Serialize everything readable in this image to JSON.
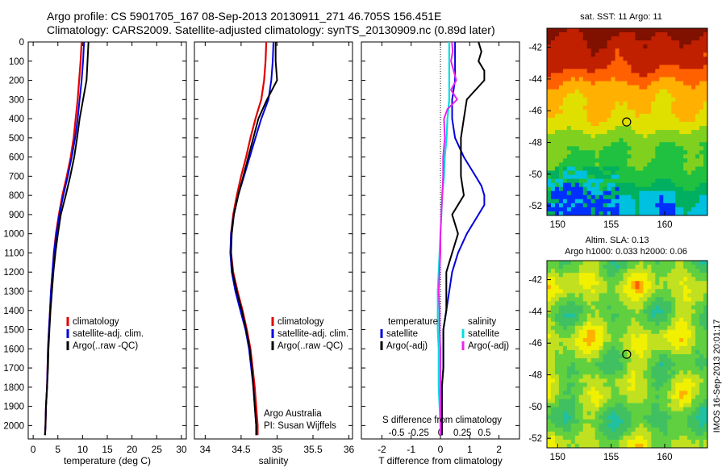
{
  "figure": {
    "title_line1": "Argo profile: CS 5901705_167 08-Sep-2013 20130911_271 46.705S 156.451E",
    "title_line2": "Climatology: CARS2009. Satellite-adjusted climatology: synTS_20130909.nc (0.89d later)",
    "vertical_stamp": "IMOS 16-Sep-2013 20:01:17",
    "credit_line1": "Argo Australia",
    "credit_line2": "PI: Susan Wijffels"
  },
  "colors": {
    "climatology": "#e00000",
    "satellite": "#0000dd",
    "argo": "#000000",
    "salinity_satellite": "#00e0e0",
    "salinity_argo": "#ee22ee"
  },
  "chart_data": [
    {
      "type": "line",
      "id": "temperature",
      "xlabel": "temperature (deg C)",
      "xlim": [
        -1,
        31
      ],
      "xticks": [
        0,
        5,
        10,
        15,
        20,
        25,
        30
      ],
      "ylim": [
        0,
        2070
      ],
      "yticks": [
        0,
        100,
        200,
        300,
        400,
        500,
        600,
        700,
        800,
        900,
        1000,
        1100,
        1200,
        1300,
        1400,
        1500,
        1600,
        1700,
        1800,
        1900,
        2000
      ],
      "y_inverted": true,
      "legend": [
        "climatology",
        "satellite-adj. clim.",
        "Argo(..raw -QC)"
      ],
      "series": [
        {
          "name": "climatology",
          "depth": [
            0,
            100,
            200,
            300,
            400,
            500,
            600,
            700,
            800,
            900,
            1000,
            1100,
            1200,
            1300,
            1400,
            1500,
            1600,
            1700,
            1800,
            1900,
            2000,
            2050
          ],
          "values": [
            9.8,
            9.6,
            9.3,
            9.0,
            8.6,
            8.2,
            7.6,
            6.8,
            5.9,
            5.2,
            4.6,
            4.2,
            3.9,
            3.6,
            3.4,
            3.2,
            3.0,
            2.9,
            2.8,
            2.6,
            2.5,
            2.4
          ]
        },
        {
          "name": "satellite-adj. clim.",
          "depth": [
            0,
            100,
            200,
            300,
            400,
            500,
            600,
            700,
            800,
            900,
            1000,
            1100,
            1200,
            1300,
            1400,
            1500,
            1600,
            1700,
            1800,
            1900,
            2000,
            2050
          ],
          "values": [
            10.3,
            10.1,
            9.8,
            9.4,
            9.0,
            8.5,
            7.8,
            7.0,
            6.1,
            5.3,
            4.7,
            4.2,
            3.9,
            3.6,
            3.4,
            3.2,
            3.0,
            2.9,
            2.8,
            2.6,
            2.5,
            2.4
          ]
        },
        {
          "name": "Argo(..raw -QC)",
          "depth": [
            0,
            100,
            200,
            300,
            400,
            500,
            600,
            700,
            800,
            900,
            1000,
            1100,
            1200,
            1300,
            1400,
            1500,
            1600,
            1700,
            1800,
            1900,
            2000,
            2050
          ],
          "values": [
            11.2,
            11.0,
            10.8,
            10.1,
            9.4,
            8.9,
            8.3,
            7.5,
            6.6,
            5.6,
            5.0,
            4.5,
            4.1,
            3.8,
            3.5,
            3.3,
            3.1,
            3.0,
            2.8,
            2.6,
            2.5,
            2.4
          ]
        }
      ]
    },
    {
      "type": "line",
      "id": "salinity",
      "xlabel": "salinity",
      "xlim": [
        33.85,
        36.05
      ],
      "xticks": [
        34,
        34.5,
        35,
        35.5,
        36
      ],
      "ylim": [
        0,
        2070
      ],
      "y_inverted": true,
      "legend": [
        "climatology",
        "satellite-adj. clim.",
        "Argo(..raw -QC)"
      ],
      "series": [
        {
          "name": "climatology",
          "depth": [
            0,
            100,
            200,
            300,
            400,
            500,
            600,
            700,
            800,
            900,
            1000,
            1100,
            1200,
            1300,
            1400,
            1500,
            1600,
            1700,
            1800,
            1900,
            2000,
            2050
          ],
          "values": [
            34.85,
            34.84,
            34.82,
            34.78,
            34.7,
            34.63,
            34.57,
            34.5,
            34.44,
            34.39,
            34.36,
            34.36,
            34.39,
            34.45,
            34.52,
            34.58,
            34.63,
            34.66,
            34.69,
            34.71,
            34.73,
            34.73
          ]
        },
        {
          "name": "satellite-adj. clim.",
          "depth": [
            0,
            100,
            200,
            300,
            400,
            500,
            600,
            700,
            800,
            900,
            1000,
            1100,
            1200,
            1300,
            1400,
            1500,
            1600,
            1700,
            1800,
            1900,
            2000,
            2050
          ],
          "values": [
            34.95,
            34.94,
            34.92,
            34.88,
            34.78,
            34.7,
            34.62,
            34.54,
            34.46,
            34.4,
            34.36,
            34.35,
            34.37,
            34.42,
            34.49,
            34.56,
            34.61,
            34.64,
            34.67,
            34.69,
            34.71,
            34.71
          ]
        },
        {
          "name": "Argo(..raw -QC)",
          "depth": [
            0,
            100,
            200,
            300,
            400,
            500,
            600,
            700,
            800,
            900,
            1000,
            1100,
            1200,
            1300,
            1400,
            1500,
            1600,
            1700,
            1800,
            1900,
            2000,
            2050
          ],
          "values": [
            34.98,
            34.98,
            35.0,
            34.86,
            34.74,
            34.67,
            34.6,
            34.53,
            34.46,
            34.4,
            34.37,
            34.36,
            34.38,
            34.44,
            34.51,
            34.57,
            34.62,
            34.65,
            34.67,
            34.69,
            34.71,
            34.71
          ]
        }
      ]
    },
    {
      "type": "line",
      "id": "differences",
      "xlabel": "T difference from climatology",
      "xlabel_top": "S difference from climatology",
      "xlim": [
        -2.7,
        2.7
      ],
      "xticks": [
        -2,
        -1,
        0,
        1,
        2
      ],
      "xticks_s": [
        -0.5,
        -0.25,
        0,
        0.25,
        0.5
      ],
      "ylim": [
        0,
        2070
      ],
      "y_inverted": true,
      "legend_temperature_title": "temperature",
      "legend_salinity_title": "salinity",
      "legend": [
        "satellite",
        "Argo(-adj)",
        "satellite",
        "Argo(-adj)"
      ],
      "series": [
        {
          "name": "T satellite",
          "depth": [
            0,
            100,
            200,
            300,
            400,
            500,
            600,
            700,
            750,
            800,
            850,
            900,
            1000,
            1100,
            1200,
            1300,
            1400,
            1500,
            1600,
            1700,
            1800,
            1900,
            2000,
            2050
          ],
          "values": [
            0.5,
            0.5,
            0.5,
            0.4,
            0.4,
            0.5,
            0.8,
            1.2,
            1.4,
            1.5,
            1.5,
            1.3,
            0.9,
            0.6,
            0.4,
            0.3,
            0.2,
            0.1,
            0.1,
            0.1,
            0.05,
            0.05,
            0.05,
            0.05
          ]
        },
        {
          "name": "T Argo(-adj)",
          "depth": [
            0,
            50,
            100,
            150,
            200,
            300,
            400,
            500,
            600,
            700,
            800,
            900,
            1000,
            1100,
            1200,
            1300,
            1400,
            1500,
            1600,
            1700,
            1800,
            1900,
            2000,
            2050
          ],
          "values": [
            1.3,
            1.4,
            1.3,
            1.5,
            1.5,
            0.9,
            0.8,
            0.7,
            0.7,
            0.7,
            0.8,
            0.4,
            0.6,
            0.4,
            0.2,
            0.2,
            0.2,
            0.1,
            0.1,
            0.1,
            0.05,
            0.05,
            0.05,
            0.05
          ]
        },
        {
          "name": "S satellite",
          "depth": [
            0,
            100,
            200,
            300,
            400,
            500,
            600,
            700,
            800,
            900,
            1000,
            1100,
            1200,
            1300,
            1400,
            1500,
            1600,
            1700,
            1800,
            1900,
            2000,
            2050
          ],
          "values": [
            0.1,
            0.1,
            0.1,
            0.1,
            0.08,
            0.07,
            0.05,
            0.04,
            0.02,
            0.01,
            0.0,
            -0.01,
            -0.02,
            -0.03,
            -0.03,
            -0.03,
            -0.02,
            -0.02,
            -0.02,
            -0.01,
            0.0,
            0.0
          ]
        },
        {
          "name": "S Argo(-adj)",
          "depth": [
            0,
            50,
            100,
            200,
            250,
            300,
            350,
            400,
            500,
            600,
            700,
            800,
            900,
            1000,
            1100,
            1200,
            1300,
            1400,
            1500,
            1600,
            1700,
            1800,
            1900,
            2000,
            2050
          ],
          "values": [
            0.13,
            0.14,
            0.12,
            0.18,
            0.12,
            0.19,
            0.08,
            0.04,
            0.05,
            0.03,
            0.03,
            0.02,
            0.01,
            0.0,
            0.0,
            -0.01,
            -0.02,
            -0.01,
            -0.01,
            0.0,
            0.0,
            0.0,
            0.0,
            0.0,
            0.0
          ]
        }
      ]
    },
    {
      "type": "heatmap",
      "id": "sst_map",
      "title": "sat. SST: 11 Argo: 11",
      "xticks": [
        150,
        155,
        160
      ],
      "yticks": [
        -42,
        -44,
        -46,
        -48,
        -50,
        -52
      ],
      "xlim": [
        149,
        164
      ],
      "ylim": [
        -52.6,
        -40.8
      ],
      "marker": {
        "lon": 156.451,
        "lat": -46.705
      }
    },
    {
      "type": "heatmap",
      "id": "sla_map",
      "title": "Altim. SLA: 0.13",
      "subtitle": "Argo h1000: 0.033 h2000: 0.06",
      "xticks": [
        150,
        155,
        160
      ],
      "yticks": [
        -42,
        -44,
        -46,
        -48,
        -50,
        -52
      ],
      "xlim": [
        149,
        164
      ],
      "ylim": [
        -52.6,
        -40.8
      ],
      "marker": {
        "lon": 156.451,
        "lat": -46.705
      }
    }
  ]
}
